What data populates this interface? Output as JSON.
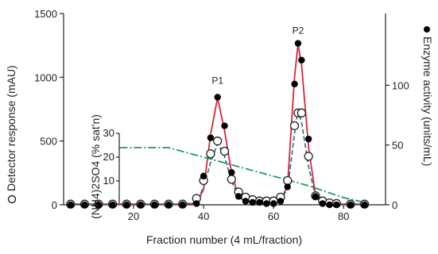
{
  "chart_data": {
    "type": "line",
    "xlabel": "Fraction number (4 mL/fraction)",
    "ylabel_left": "Detector response (mAU)",
    "ylabel_right": "Enzyme activity (units/mL)",
    "ylabel_inner": "(NH4)2SO4 (% sat'n)",
    "xlim": [
      0,
      92
    ],
    "ylim_left": [
      0,
      1500
    ],
    "ylim_right": [
      0,
      160
    ],
    "ylim_inner": [
      0,
      30
    ],
    "xticks": [
      20,
      40,
      60,
      80
    ],
    "yticks_left": [
      0,
      500,
      1000,
      1500
    ],
    "yticks_right": [
      0,
      50,
      100
    ],
    "yticks_inner": [
      10,
      20,
      30
    ],
    "grid": false,
    "annotations": [
      {
        "text": "P1",
        "x": 44,
        "y": 950
      },
      {
        "text": "P2",
        "x": 67,
        "y": 1340
      }
    ],
    "series": [
      {
        "axis": "left",
        "style": "solid-red",
        "x": [
          2,
          6,
          10,
          14,
          18,
          22,
          26,
          30,
          34,
          38,
          40,
          42,
          44,
          46,
          48,
          50,
          52,
          54,
          56,
          58,
          60,
          62,
          64,
          66,
          67,
          68,
          70,
          72,
          74,
          76,
          78,
          82,
          86
        ],
        "y": [
          5,
          5,
          5,
          5,
          5,
          5,
          5,
          5,
          5,
          10,
          120,
          550,
          840,
          580,
          250,
          60,
          30,
          20,
          20,
          15,
          15,
          30,
          150,
          1000,
          1260,
          1100,
          450,
          70,
          15,
          10,
          5,
          5,
          5
        ]
      },
      {
        "axis": "left",
        "style": "dashed-blue",
        "x": [
          2,
          6,
          10,
          14,
          18,
          22,
          26,
          30,
          34,
          38,
          40,
          42,
          44,
          46,
          48,
          50,
          52,
          54,
          56,
          58,
          60,
          62,
          64,
          66,
          67,
          68,
          70,
          72,
          74,
          76,
          78,
          82,
          86
        ],
        "y": [
          5,
          5,
          5,
          5,
          5,
          5,
          5,
          5,
          5,
          20,
          140,
          330,
          480,
          380,
          180,
          70,
          40,
          30,
          25,
          20,
          20,
          40,
          120,
          560,
          740,
          650,
          300,
          60,
          20,
          10,
          5,
          5,
          5
        ]
      },
      {
        "name": "Enzyme activity",
        "axis": "right",
        "marker": "filled-circle",
        "x": [
          2,
          6,
          10,
          14,
          18,
          22,
          26,
          30,
          34,
          38,
          40,
          42,
          44,
          46,
          48,
          50,
          52,
          54,
          56,
          58,
          60,
          62,
          64,
          66,
          67,
          68,
          70,
          72,
          74,
          76,
          78,
          82,
          86
        ],
        "y": [
          0,
          0,
          0,
          0,
          0,
          0,
          0,
          0,
          0,
          1,
          24,
          56,
          90,
          66,
          27,
          7,
          3,
          2,
          2,
          1,
          1,
          3,
          15,
          101,
          135,
          121,
          55,
          7,
          1,
          0,
          0,
          0,
          0
        ]
      },
      {
        "name": "Detector response",
        "axis": "left",
        "marker": "open-circle",
        "x": [
          2,
          6,
          10,
          14,
          18,
          22,
          26,
          30,
          34,
          38,
          40,
          42,
          44,
          46,
          48,
          50,
          52,
          54,
          56,
          58,
          60,
          62,
          64,
          66,
          67,
          68,
          70,
          72,
          74,
          76,
          78,
          82,
          86
        ],
        "y": [
          5,
          5,
          5,
          5,
          5,
          5,
          5,
          5,
          5,
          50,
          190,
          400,
          500,
          420,
          200,
          100,
          60,
          40,
          30,
          30,
          30,
          60,
          190,
          620,
          720,
          720,
          380,
          70,
          30,
          15,
          10,
          5,
          5
        ]
      },
      {
        "axis": "inner",
        "style": "dashdot-green",
        "x": [
          16,
          30,
          40,
          50,
          60,
          70,
          80,
          86
        ],
        "y": [
          24,
          24,
          20,
          16,
          12,
          8,
          3,
          1
        ]
      }
    ]
  }
}
